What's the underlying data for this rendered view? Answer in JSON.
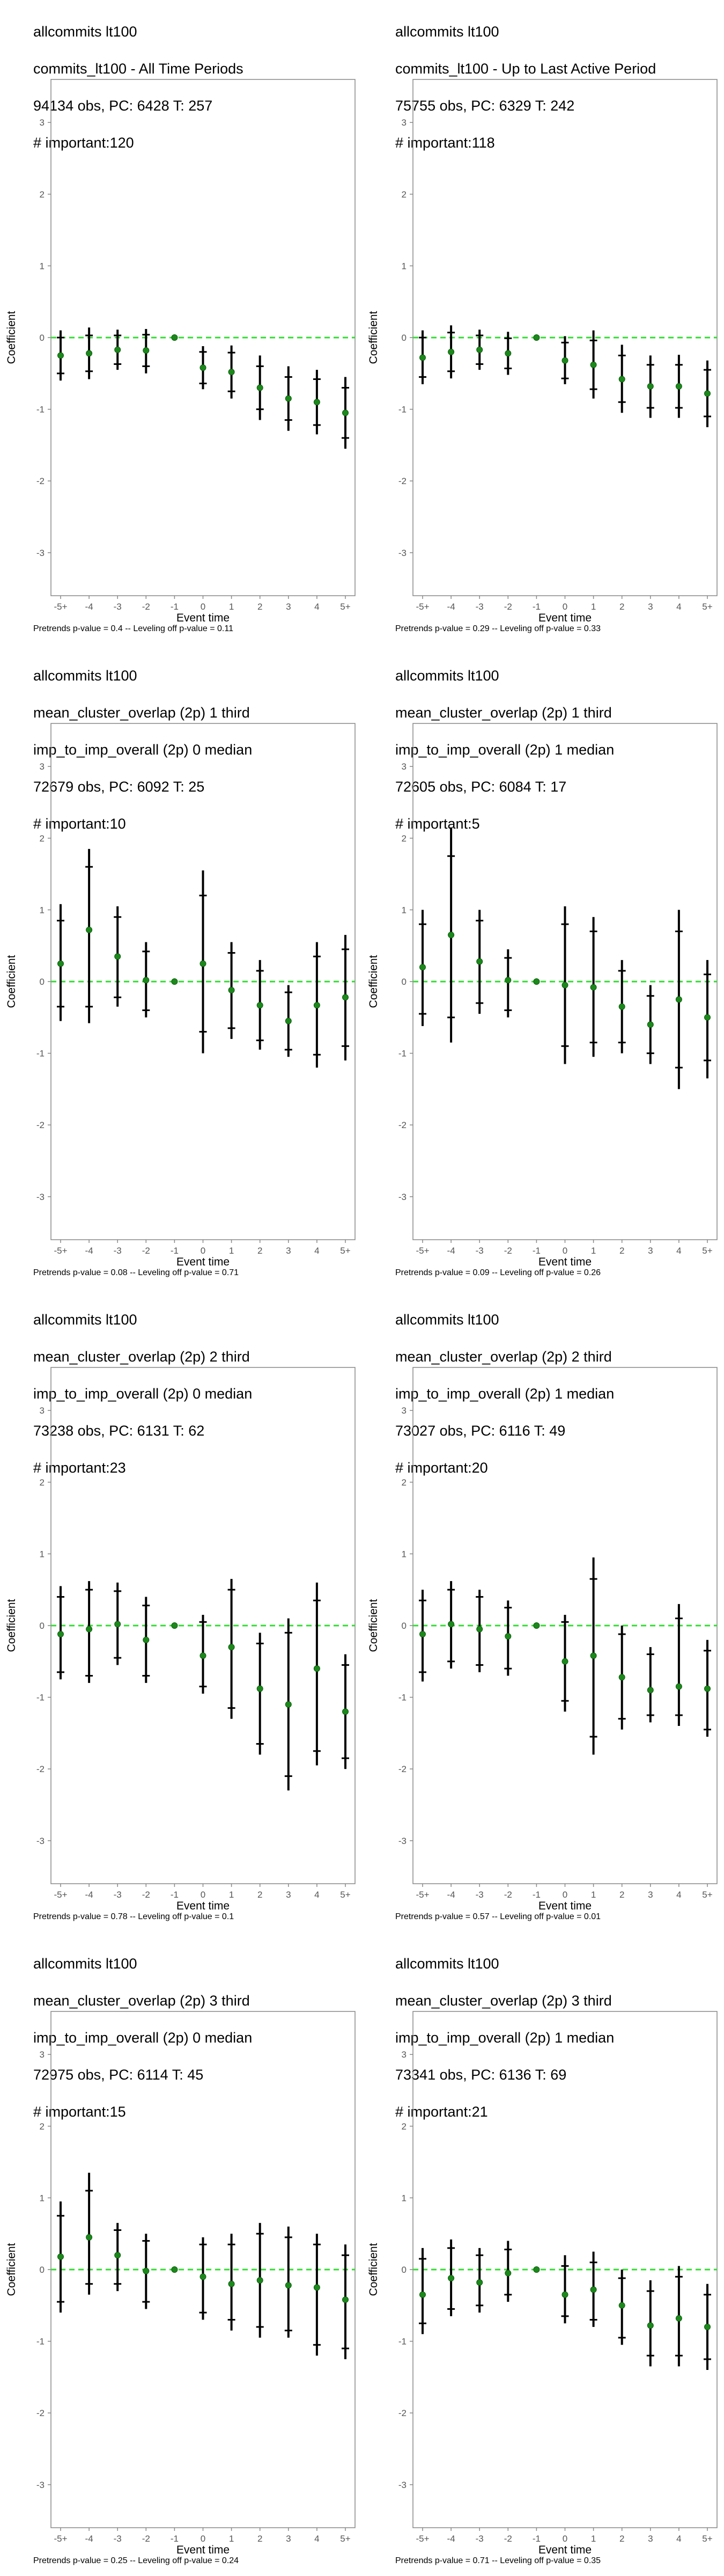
{
  "chart_data": [
    {
      "type": "scatter",
      "title_lines": [
        "allcommits lt100",
        "commits_lt100 - All Time Periods",
        "94134 obs, PC: 6428 T: 257",
        "# important:120"
      ],
      "xlabel": "Event time",
      "ylabel": "Coefficient",
      "categories": [
        "-5+",
        "-4",
        "-3",
        "-2",
        "-1",
        "0",
        "1",
        "2",
        "3",
        "4",
        "5+"
      ],
      "ylim": [
        -3.6,
        3.6
      ],
      "yticks": [
        -3,
        -2,
        -1,
        0,
        1,
        2,
        3
      ],
      "estimate": [
        -0.25,
        -0.22,
        -0.17,
        -0.18,
        0.0,
        -0.42,
        -0.48,
        -0.7,
        -0.85,
        -0.9,
        -1.05
      ],
      "ci95_low": [
        -0.6,
        -0.58,
        -0.45,
        -0.5,
        0.0,
        -0.72,
        -0.85,
        -1.15,
        -1.3,
        -1.35,
        -1.55
      ],
      "ci95_high": [
        0.1,
        0.14,
        0.11,
        0.12,
        0.0,
        -0.12,
        -0.11,
        -0.25,
        -0.4,
        -0.45,
        -0.55
      ],
      "ci90_low": [
        -0.5,
        -0.47,
        -0.37,
        -0.4,
        0.0,
        -0.64,
        -0.75,
        -1.0,
        -1.15,
        -1.22,
        -1.4
      ],
      "ci90_high": [
        0.0,
        0.03,
        0.03,
        0.04,
        0.0,
        -0.2,
        -0.21,
        -0.4,
        -0.55,
        -0.58,
        -0.7
      ],
      "footer": "Pretrends p-value = 0.4 -- Leveling off p-value = 0.11",
      "colors": {
        "point": "#1b8a1b",
        "zero_line": "#33dd33",
        "bars": "#000000",
        "border": "#888888"
      }
    },
    {
      "type": "scatter",
      "title_lines": [
        "allcommits lt100",
        "commits_lt100 - Up to Last Active Period",
        "75755 obs, PC: 6329 T: 242",
        "# important:118"
      ],
      "xlabel": "Event time",
      "ylabel": "Coefficient",
      "categories": [
        "-5+",
        "-4",
        "-3",
        "-2",
        "-1",
        "0",
        "1",
        "2",
        "3",
        "4",
        "5+"
      ],
      "ylim": [
        -3.6,
        3.6
      ],
      "yticks": [
        -3,
        -2,
        -1,
        0,
        1,
        2,
        3
      ],
      "estimate": [
        -0.28,
        -0.2,
        -0.17,
        -0.22,
        0.0,
        -0.32,
        -0.38,
        -0.58,
        -0.68,
        -0.68,
        -0.78
      ],
      "ci95_low": [
        -0.65,
        -0.57,
        -0.45,
        -0.52,
        0.0,
        -0.65,
        -0.85,
        -1.05,
        -1.12,
        -1.12,
        -1.25
      ],
      "ci95_high": [
        0.1,
        0.17,
        0.11,
        0.08,
        0.0,
        0.02,
        0.1,
        -0.1,
        -0.25,
        -0.24,
        -0.32
      ],
      "ci90_low": [
        -0.55,
        -0.47,
        -0.37,
        -0.43,
        0.0,
        -0.57,
        -0.72,
        -0.9,
        -0.98,
        -0.98,
        -1.1
      ],
      "ci90_high": [
        0.0,
        0.07,
        0.03,
        -0.01,
        0.0,
        -0.07,
        -0.04,
        -0.25,
        -0.38,
        -0.38,
        -0.45
      ],
      "footer": "Pretrends p-value = 0.29 -- Leveling off p-value = 0.33",
      "colors": {
        "point": "#1b8a1b",
        "zero_line": "#33dd33",
        "bars": "#000000",
        "border": "#888888"
      }
    },
    {
      "type": "scatter",
      "title_lines": [
        "allcommits lt100",
        "mean_cluster_overlap (2p) 1 third",
        "imp_to_imp_overall (2p) 0 median",
        "72679 obs, PC: 6092 T: 25",
        "# important:10"
      ],
      "xlabel": "Event time",
      "ylabel": "Coefficient",
      "categories": [
        "-5+",
        "-4",
        "-3",
        "-2",
        "-1",
        "0",
        "1",
        "2",
        "3",
        "4",
        "5+"
      ],
      "ylim": [
        -3.6,
        3.6
      ],
      "yticks": [
        -3,
        -2,
        -1,
        0,
        1,
        2,
        3
      ],
      "estimate": [
        0.25,
        0.72,
        0.35,
        0.02,
        0.0,
        0.25,
        -0.12,
        -0.33,
        -0.55,
        -0.33,
        -0.22
      ],
      "ci95_low": [
        -0.55,
        -0.58,
        -0.35,
        -0.5,
        0.0,
        -1.0,
        -0.8,
        -0.95,
        -1.05,
        -1.2,
        -1.1
      ],
      "ci95_high": [
        1.08,
        1.85,
        1.05,
        0.55,
        0.0,
        1.55,
        0.55,
        0.3,
        -0.05,
        0.55,
        0.65
      ],
      "ci90_low": [
        -0.35,
        -0.35,
        -0.22,
        -0.4,
        0.0,
        -0.7,
        -0.65,
        -0.82,
        -0.95,
        -1.02,
        -0.9
      ],
      "ci90_high": [
        0.85,
        1.6,
        0.9,
        0.42,
        0.0,
        1.2,
        0.4,
        0.15,
        -0.15,
        0.35,
        0.45
      ],
      "footer": "Pretrends p-value = 0.08 -- Leveling off p-value = 0.71",
      "colors": {
        "point": "#1b8a1b",
        "zero_line": "#33dd33",
        "bars": "#000000",
        "border": "#888888"
      }
    },
    {
      "type": "scatter",
      "title_lines": [
        "allcommits lt100",
        "mean_cluster_overlap (2p) 1 third",
        "imp_to_imp_overall (2p) 1 median",
        "72605 obs, PC: 6084 T: 17",
        "# important:5"
      ],
      "xlabel": "Event time",
      "ylabel": "Coefficient",
      "categories": [
        "-5+",
        "-4",
        "-3",
        "-2",
        "-1",
        "0",
        "1",
        "2",
        "3",
        "4",
        "5+"
      ],
      "ylim": [
        -3.6,
        3.6
      ],
      "yticks": [
        -3,
        -2,
        -1,
        0,
        1,
        2,
        3
      ],
      "estimate": [
        0.2,
        0.65,
        0.28,
        0.02,
        0.0,
        -0.05,
        -0.08,
        -0.35,
        -0.6,
        -0.25,
        -0.5
      ],
      "ci95_low": [
        -0.62,
        -0.85,
        -0.45,
        -0.5,
        0.0,
        -1.15,
        -1.05,
        -1.0,
        -1.15,
        -1.5,
        -1.35
      ],
      "ci95_high": [
        1.0,
        2.15,
        1.0,
        0.45,
        0.0,
        1.05,
        0.9,
        0.3,
        -0.05,
        1.0,
        0.3
      ],
      "ci90_low": [
        -0.45,
        -0.5,
        -0.3,
        -0.4,
        0.0,
        -0.9,
        -0.85,
        -0.85,
        -1.0,
        -1.2,
        -1.1
      ],
      "ci90_high": [
        0.8,
        1.75,
        0.85,
        0.33,
        0.0,
        0.8,
        0.7,
        0.15,
        -0.2,
        0.7,
        0.1
      ],
      "footer": "Pretrends p-value = 0.09 -- Leveling off p-value = 0.26",
      "colors": {
        "point": "#1b8a1b",
        "zero_line": "#33dd33",
        "bars": "#000000",
        "border": "#888888"
      }
    },
    {
      "type": "scatter",
      "title_lines": [
        "allcommits lt100",
        "mean_cluster_overlap (2p) 2 third",
        "imp_to_imp_overall (2p) 0 median",
        "73238 obs, PC: 6131 T: 62",
        "# important:23"
      ],
      "xlabel": "Event time",
      "ylabel": "Coefficient",
      "categories": [
        "-5+",
        "-4",
        "-3",
        "-2",
        "-1",
        "0",
        "1",
        "2",
        "3",
        "4",
        "5+"
      ],
      "ylim": [
        -3.6,
        3.6
      ],
      "yticks": [
        -3,
        -2,
        -1,
        0,
        1,
        2,
        3
      ],
      "estimate": [
        -0.12,
        -0.05,
        0.02,
        -0.2,
        0.0,
        -0.42,
        -0.3,
        -0.88,
        -1.1,
        -0.6,
        -1.2
      ],
      "ci95_low": [
        -0.75,
        -0.8,
        -0.55,
        -0.8,
        0.0,
        -0.95,
        -1.3,
        -1.8,
        -2.3,
        -1.95,
        -2.0
      ],
      "ci95_high": [
        0.55,
        0.62,
        0.6,
        0.4,
        0.0,
        0.15,
        0.65,
        -0.1,
        0.1,
        0.6,
        -0.4
      ],
      "ci90_low": [
        -0.65,
        -0.7,
        -0.45,
        -0.7,
        0.0,
        -0.85,
        -1.15,
        -1.65,
        -2.1,
        -1.75,
        -1.85
      ],
      "ci90_high": [
        0.4,
        0.5,
        0.48,
        0.28,
        0.0,
        0.05,
        0.5,
        -0.25,
        -0.1,
        0.35,
        -0.55
      ],
      "footer": "Pretrends p-value = 0.78 -- Leveling off p-value = 0.1",
      "colors": {
        "point": "#1b8a1b",
        "zero_line": "#33dd33",
        "bars": "#000000",
        "border": "#888888"
      }
    },
    {
      "type": "scatter",
      "title_lines": [
        "allcommits lt100",
        "mean_cluster_overlap (2p) 2 third",
        "imp_to_imp_overall (2p) 1 median",
        "73027 obs, PC: 6116 T: 49",
        "# important:20"
      ],
      "xlabel": "Event time",
      "ylabel": "Coefficient",
      "categories": [
        "-5+",
        "-4",
        "-3",
        "-2",
        "-1",
        "0",
        "1",
        "2",
        "3",
        "4",
        "5+"
      ],
      "ylim": [
        -3.6,
        3.6
      ],
      "yticks": [
        -3,
        -2,
        -1,
        0,
        1,
        2,
        3
      ],
      "estimate": [
        -0.12,
        0.02,
        -0.05,
        -0.15,
        0.0,
        -0.5,
        -0.42,
        -0.72,
        -0.9,
        -0.85,
        -0.88
      ],
      "ci95_low": [
        -0.78,
        -0.6,
        -0.65,
        -0.7,
        0.0,
        -1.2,
        -1.8,
        -1.45,
        -1.35,
        -1.4,
        -1.55
      ],
      "ci95_high": [
        0.5,
        0.62,
        0.5,
        0.35,
        0.0,
        0.15,
        0.95,
        0.0,
        -0.3,
        0.3,
        -0.2
      ],
      "ci90_low": [
        -0.65,
        -0.5,
        -0.55,
        -0.6,
        0.0,
        -1.05,
        -1.55,
        -1.3,
        -1.25,
        -1.25,
        -1.45
      ],
      "ci90_high": [
        0.35,
        0.5,
        0.4,
        0.25,
        0.0,
        0.05,
        0.65,
        -0.12,
        -0.4,
        0.1,
        -0.35
      ],
      "footer": "Pretrends p-value = 0.57 -- Leveling off p-value = 0.01",
      "colors": {
        "point": "#1b8a1b",
        "zero_line": "#33dd33",
        "bars": "#000000",
        "border": "#888888"
      }
    },
    {
      "type": "scatter",
      "title_lines": [
        "allcommits lt100",
        "mean_cluster_overlap (2p) 3 third",
        "imp_to_imp_overall (2p) 0 median",
        "72975 obs, PC: 6114 T: 45",
        "# important:15"
      ],
      "xlabel": "Event time",
      "ylabel": "Coefficient",
      "categories": [
        "-5+",
        "-4",
        "-3",
        "-2",
        "-1",
        "0",
        "1",
        "2",
        "3",
        "4",
        "5+"
      ],
      "ylim": [
        -3.6,
        3.6
      ],
      "yticks": [
        -3,
        -2,
        -1,
        0,
        1,
        2,
        3
      ],
      "estimate": [
        0.18,
        0.45,
        0.2,
        -0.02,
        0.0,
        -0.1,
        -0.2,
        -0.15,
        -0.22,
        -0.25,
        -0.42
      ],
      "ci95_low": [
        -0.6,
        -0.35,
        -0.3,
        -0.55,
        0.0,
        -0.7,
        -0.85,
        -0.95,
        -0.95,
        -1.2,
        -1.25
      ],
      "ci95_high": [
        0.95,
        1.35,
        0.65,
        0.5,
        0.0,
        0.45,
        0.5,
        0.65,
        0.6,
        0.5,
        0.35
      ],
      "ci90_low": [
        -0.45,
        -0.2,
        -0.2,
        -0.45,
        0.0,
        -0.6,
        -0.7,
        -0.8,
        -0.85,
        -1.05,
        -1.1
      ],
      "ci90_high": [
        0.75,
        1.1,
        0.55,
        0.4,
        0.0,
        0.35,
        0.35,
        0.5,
        0.45,
        0.35,
        0.2
      ],
      "footer": "Pretrends p-value = 0.25 -- Leveling off p-value = 0.24",
      "colors": {
        "point": "#1b8a1b",
        "zero_line": "#33dd33",
        "bars": "#000000",
        "border": "#888888"
      }
    },
    {
      "type": "scatter",
      "title_lines": [
        "allcommits lt100",
        "mean_cluster_overlap (2p) 3 third",
        "imp_to_imp_overall (2p) 1 median",
        "73341 obs, PC: 6136 T: 69",
        "# important:21"
      ],
      "xlabel": "Event time",
      "ylabel": "Coefficient",
      "categories": [
        "-5+",
        "-4",
        "-3",
        "-2",
        "-1",
        "0",
        "1",
        "2",
        "3",
        "4",
        "5+"
      ],
      "ylim": [
        -3.6,
        3.6
      ],
      "yticks": [
        -3,
        -2,
        -1,
        0,
        1,
        2,
        3
      ],
      "estimate": [
        -0.35,
        -0.12,
        -0.18,
        -0.05,
        0.0,
        -0.35,
        -0.28,
        -0.5,
        -0.78,
        -0.68,
        -0.8
      ],
      "ci95_low": [
        -0.9,
        -0.65,
        -0.6,
        -0.45,
        0.0,
        -0.75,
        -0.8,
        -1.05,
        -1.35,
        -1.35,
        -1.4
      ],
      "ci95_high": [
        0.3,
        0.42,
        0.3,
        0.4,
        0.0,
        0.2,
        0.25,
        0.0,
        -0.15,
        0.05,
        -0.2
      ],
      "ci90_low": [
        -0.75,
        -0.55,
        -0.5,
        -0.35,
        0.0,
        -0.65,
        -0.7,
        -0.95,
        -1.2,
        -1.2,
        -1.25
      ],
      "ci90_high": [
        0.15,
        0.3,
        0.2,
        0.28,
        0.0,
        0.05,
        0.1,
        -0.12,
        -0.3,
        -0.1,
        -0.35
      ],
      "footer": "Pretrends p-value = 0.71 -- Leveling off p-value = 0.35",
      "colors": {
        "point": "#1b8a1b",
        "zero_line": "#33dd33",
        "bars": "#000000",
        "border": "#888888"
      }
    }
  ]
}
